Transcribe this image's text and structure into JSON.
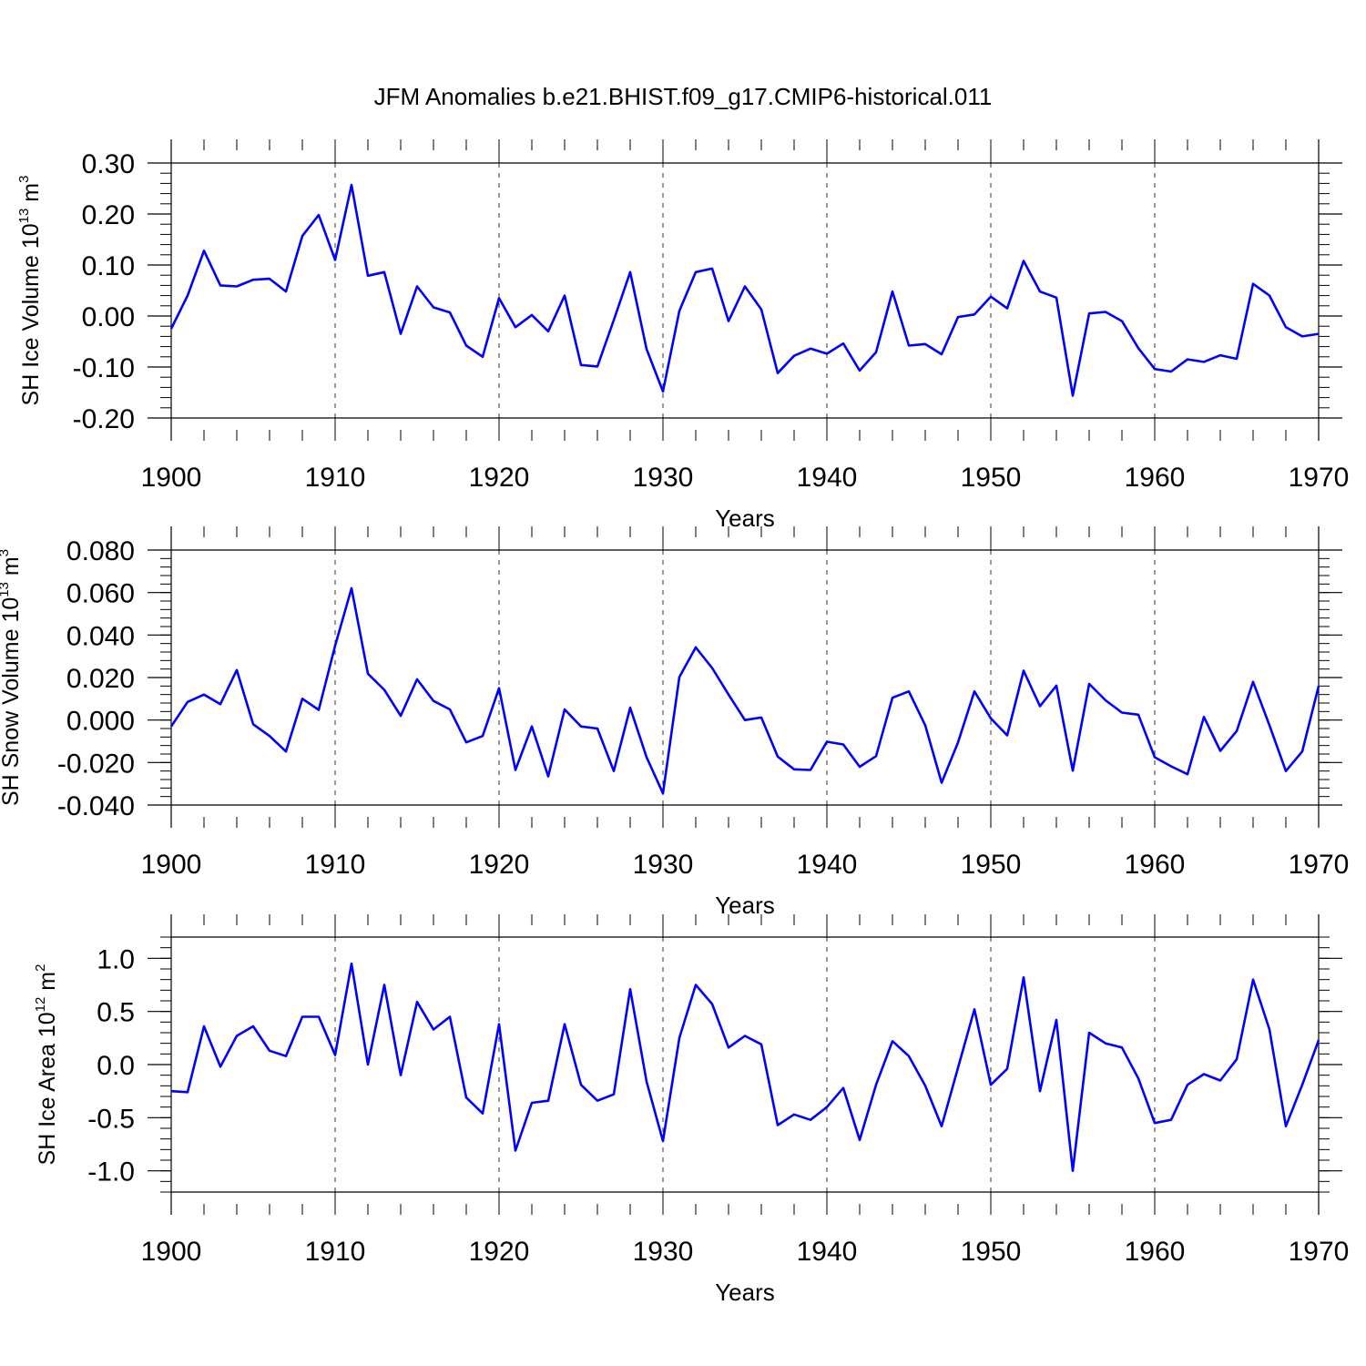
{
  "title": "JFM Anomalies b.e21.BHIST.f09_g17.CMIP6-historical.011",
  "line_color": "#0000ff",
  "chart_data": [
    {
      "type": "line",
      "ylabel": "SH Ice Volume 10",
      "ylabel_exp": "13",
      "ylabel_unit": " m",
      "ylabel_unit_exp": "3",
      "xlabel": "Years",
      "xlim": [
        1900,
        1970
      ],
      "ylim": [
        -0.2,
        0.3
      ],
      "yticks": [
        -0.2,
        -0.1,
        0.0,
        0.1,
        0.2,
        0.3
      ],
      "ytick_labels": [
        "-0.20",
        "-0.10",
        "0.00",
        "0.10",
        "0.20",
        "0.30"
      ],
      "xticks": [
        1900,
        1910,
        1920,
        1930,
        1940,
        1950,
        1960,
        1970
      ],
      "xtick_labels": [
        "1900",
        "1910",
        "1920",
        "1930",
        "1940",
        "1950",
        "1960",
        "1970"
      ],
      "grid_x": [
        1910,
        1920,
        1930,
        1940,
        1950,
        1960
      ],
      "series": [
        {
          "name": "SH Ice Volume",
          "start_year": 1900,
          "values": [
            -0.025,
            0.04,
            0.128,
            0.06,
            0.058,
            0.071,
            0.073,
            0.048,
            0.157,
            0.198,
            0.11,
            0.257,
            0.079,
            0.086,
            -0.035,
            0.058,
            0.017,
            0.007,
            -0.058,
            -0.08,
            0.035,
            -0.022,
            0.002,
            -0.03,
            0.04,
            -0.096,
            -0.099,
            -0.008,
            0.086,
            -0.065,
            -0.148,
            0.01,
            0.086,
            0.093,
            -0.01,
            0.058,
            0.013,
            -0.112,
            -0.078,
            -0.064,
            -0.074,
            -0.054,
            -0.107,
            -0.071,
            0.048,
            -0.058,
            -0.055,
            -0.075,
            -0.002,
            0.003,
            0.038,
            0.015,
            0.108,
            0.048,
            0.036,
            -0.156,
            0.005,
            0.008,
            -0.01,
            -0.063,
            -0.104,
            -0.109,
            -0.085,
            -0.09,
            -0.077,
            -0.084,
            0.063,
            0.04,
            -0.022,
            -0.04,
            -0.035
          ]
        }
      ]
    },
    {
      "type": "line",
      "ylabel": "SH Snow Volume 10",
      "ylabel_exp": "13",
      "ylabel_unit": " m",
      "ylabel_unit_exp": "3",
      "xlabel": "Years",
      "xlim": [
        1900,
        1970
      ],
      "ylim": [
        -0.04,
        0.08
      ],
      "yticks": [
        -0.04,
        -0.02,
        0.0,
        0.02,
        0.04,
        0.06,
        0.08
      ],
      "ytick_labels": [
        "-0.040",
        "-0.020",
        "0.000",
        "0.020",
        "0.040",
        "0.060",
        "0.080"
      ],
      "xticks": [
        1900,
        1910,
        1920,
        1930,
        1940,
        1950,
        1960,
        1970
      ],
      "xtick_labels": [
        "1900",
        "1910",
        "1920",
        "1930",
        "1940",
        "1950",
        "1960",
        "1970"
      ],
      "grid_x": [
        1910,
        1920,
        1930,
        1940,
        1950,
        1960
      ],
      "series": [
        {
          "name": "SH Snow Volume",
          "start_year": 1900,
          "values": [
            -0.003,
            0.0085,
            0.012,
            0.0075,
            0.0235,
            -0.002,
            -0.0075,
            -0.0148,
            0.01,
            0.0048,
            0.035,
            0.062,
            0.0218,
            0.0142,
            0.002,
            0.0192,
            0.009,
            0.005,
            -0.0105,
            -0.0075,
            0.015,
            -0.0235,
            -0.003,
            -0.0265,
            0.005,
            -0.003,
            -0.004,
            -0.024,
            0.0058,
            -0.0175,
            -0.0345,
            0.0202,
            0.0342,
            0.0245,
            0.012,
            0.0,
            0.0012,
            -0.0172,
            -0.0232,
            -0.0235,
            -0.0102,
            -0.0115,
            -0.022,
            -0.017,
            0.0105,
            0.0135,
            -0.0025,
            -0.0295,
            -0.0105,
            0.0135,
            0.0008,
            -0.0072,
            0.0232,
            0.0065,
            0.0162,
            -0.0238,
            0.017,
            0.0093,
            0.0035,
            0.0025,
            -0.0175,
            -0.0218,
            -0.0255,
            0.0015,
            -0.0145,
            -0.0052,
            0.018,
            -0.0025,
            -0.024,
            -0.0148,
            0.016
          ]
        }
      ]
    },
    {
      "type": "line",
      "ylabel": "SH Ice Area 10",
      "ylabel_exp": "12",
      "ylabel_unit": " m",
      "ylabel_unit_exp": "2",
      "xlabel": "Years",
      "xlim": [
        1900,
        1970
      ],
      "ylim": [
        -1.2,
        1.2
      ],
      "yticks": [
        -1.0,
        -0.5,
        0.0,
        0.5,
        1.0
      ],
      "ytick_labels": [
        "-1.0",
        "-0.5",
        "0.0",
        "0.5",
        "1.0"
      ],
      "xticks": [
        1900,
        1910,
        1920,
        1930,
        1940,
        1950,
        1960,
        1970
      ],
      "xtick_labels": [
        "1900",
        "1910",
        "1920",
        "1930",
        "1940",
        "1950",
        "1960",
        "1970"
      ],
      "grid_x": [
        1910,
        1920,
        1930,
        1940,
        1950,
        1960
      ],
      "series": [
        {
          "name": "SH Ice Area",
          "start_year": 1900,
          "values": [
            -0.25,
            -0.26,
            0.36,
            -0.02,
            0.27,
            0.36,
            0.13,
            0.08,
            0.45,
            0.45,
            0.09,
            0.95,
            0.0,
            0.75,
            -0.1,
            0.59,
            0.33,
            0.45,
            -0.31,
            -0.46,
            0.38,
            -0.81,
            -0.36,
            -0.34,
            0.38,
            -0.19,
            -0.34,
            -0.28,
            0.71,
            -0.16,
            -0.72,
            0.25,
            0.75,
            0.57,
            0.16,
            0.27,
            0.19,
            -0.57,
            -0.47,
            -0.52,
            -0.4,
            -0.22,
            -0.71,
            -0.19,
            0.22,
            0.08,
            -0.2,
            -0.58,
            -0.03,
            0.52,
            -0.19,
            -0.04,
            0.82,
            -0.25,
            0.42,
            -1.0,
            0.3,
            0.2,
            0.16,
            -0.13,
            -0.55,
            -0.52,
            -0.19,
            -0.09,
            -0.15,
            0.05,
            0.8,
            0.33,
            -0.58,
            -0.19,
            0.23
          ]
        }
      ]
    }
  ]
}
